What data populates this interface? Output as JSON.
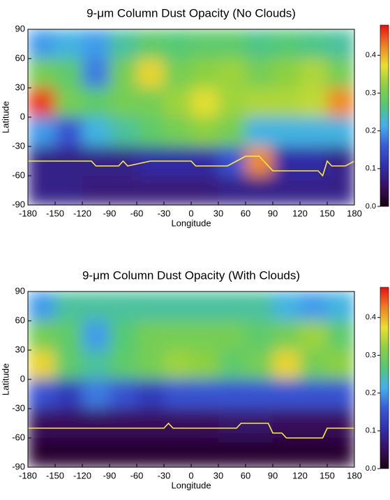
{
  "chart_data": [
    {
      "type": "heatmap",
      "title": "9-μm Column Dust Opacity (No Clouds)",
      "xlabel": "Longitude",
      "ylabel": "Latitude",
      "x": [
        -165,
        -135,
        -105,
        -75,
        -45,
        -15,
        15,
        45,
        75,
        105,
        135,
        165
      ],
      "y": [
        75,
        45,
        15,
        -15,
        -45,
        -75
      ],
      "z": [
        [
          0.2,
          0.22,
          0.2,
          0.25,
          0.28,
          0.27,
          0.28,
          0.28,
          0.26,
          0.27,
          0.26,
          0.25
        ],
        [
          0.3,
          0.28,
          0.18,
          0.3,
          0.38,
          0.3,
          0.32,
          0.33,
          0.3,
          0.32,
          0.34,
          0.3
        ],
        [
          0.46,
          0.3,
          0.28,
          0.3,
          0.3,
          0.33,
          0.37,
          0.33,
          0.34,
          0.34,
          0.35,
          0.42
        ],
        [
          0.2,
          0.15,
          0.22,
          0.25,
          0.28,
          0.3,
          0.32,
          0.3,
          0.22,
          0.22,
          0.22,
          0.22
        ],
        [
          0.08,
          0.08,
          0.08,
          0.08,
          0.1,
          0.1,
          0.1,
          0.15,
          0.42,
          0.1,
          0.1,
          0.08
        ],
        [
          0.08,
          0.08,
          0.07,
          0.07,
          0.07,
          0.07,
          0.07,
          0.08,
          0.08,
          0.08,
          0.08,
          0.08
        ]
      ],
      "xlim": [
        -180,
        180
      ],
      "ylim": [
        -90,
        90
      ],
      "xticks": [
        -180,
        -150,
        -120,
        -90,
        -60,
        -30,
        0,
        30,
        60,
        90,
        120,
        150,
        180
      ],
      "yticks": [
        -90,
        -60,
        -30,
        0,
        30,
        60,
        90
      ],
      "clim": [
        0,
        0.48
      ],
      "cticks": [
        {
          "value": 0,
          "label": "0.0"
        },
        0.1,
        0.2,
        0.3,
        0.4
      ],
      "colormap": [
        "#1a0010",
        "#3a1060",
        "#3030b0",
        "#3a5ad8",
        "#40b0f0",
        "#50c878",
        "#8cd040",
        "#e8e030",
        "#f08020",
        "#e81010"
      ],
      "line": {
        "color": "#ffee33",
        "x": [
          -180,
          -110,
          -105,
          -80,
          -75,
          -70,
          -45,
          0,
          5,
          40,
          50,
          60,
          75,
          80,
          90,
          140,
          145,
          150,
          155,
          170,
          180
        ],
        "values": [
          -45,
          -45,
          -50,
          -50,
          -45,
          -50,
          -45,
          -45,
          -50,
          -50,
          -45,
          -40,
          -40,
          -45,
          -55,
          -55,
          -60,
          -45,
          -50,
          -50,
          -45
        ]
      }
    },
    {
      "type": "heatmap",
      "title": "9-μm Column Dust Opacity (With Clouds)",
      "xlabel": "Longitude",
      "ylabel": "Latitude",
      "x": [
        -165,
        -135,
        -105,
        -75,
        -45,
        -15,
        15,
        45,
        75,
        105,
        135,
        165
      ],
      "y": [
        75,
        45,
        15,
        -15,
        -45,
        -75
      ],
      "z": [
        [
          0.2,
          0.25,
          0.25,
          0.25,
          0.25,
          0.25,
          0.25,
          0.25,
          0.25,
          0.22,
          0.2,
          0.22
        ],
        [
          0.3,
          0.28,
          0.2,
          0.27,
          0.3,
          0.3,
          0.3,
          0.3,
          0.28,
          0.3,
          0.33,
          0.28
        ],
        [
          0.38,
          0.28,
          0.25,
          0.28,
          0.3,
          0.33,
          0.32,
          0.28,
          0.3,
          0.38,
          0.3,
          0.32
        ],
        [
          0.15,
          0.12,
          0.18,
          0.15,
          0.12,
          0.15,
          0.15,
          0.15,
          0.15,
          0.15,
          0.15,
          0.15
        ],
        [
          0.05,
          0.05,
          0.05,
          0.05,
          0.05,
          0.05,
          0.05,
          0.06,
          0.06,
          0.05,
          0.05,
          0.05
        ],
        [
          0.02,
          0.02,
          0.02,
          0.02,
          0.02,
          0.02,
          0.02,
          0.02,
          0.02,
          0.02,
          0.02,
          0.02
        ]
      ],
      "xlim": [
        -180,
        180
      ],
      "ylim": [
        -90,
        90
      ],
      "xticks": [
        -180,
        -150,
        -120,
        -90,
        -60,
        -30,
        0,
        30,
        60,
        90,
        120,
        150,
        180
      ],
      "yticks": [
        -90,
        -60,
        -30,
        0,
        30,
        60,
        90
      ],
      "clim": [
        0,
        0.48
      ],
      "cticks": [
        {
          "value": 0,
          "label": "0.0"
        },
        0.1,
        0.2,
        0.3,
        0.4
      ],
      "colormap": [
        "#1a0010",
        "#3a1060",
        "#3030b0",
        "#3a5ad8",
        "#40b0f0",
        "#50c878",
        "#8cd040",
        "#e8e030",
        "#f08020",
        "#e81010"
      ],
      "line": {
        "color": "#ffee33",
        "x": [
          -180,
          -30,
          -25,
          -20,
          50,
          55,
          85,
          90,
          100,
          105,
          145,
          150,
          180
        ],
        "values": [
          -50,
          -50,
          -45,
          -50,
          -50,
          -45,
          -45,
          -55,
          -55,
          -60,
          -60,
          -50,
          -50
        ]
      }
    }
  ]
}
